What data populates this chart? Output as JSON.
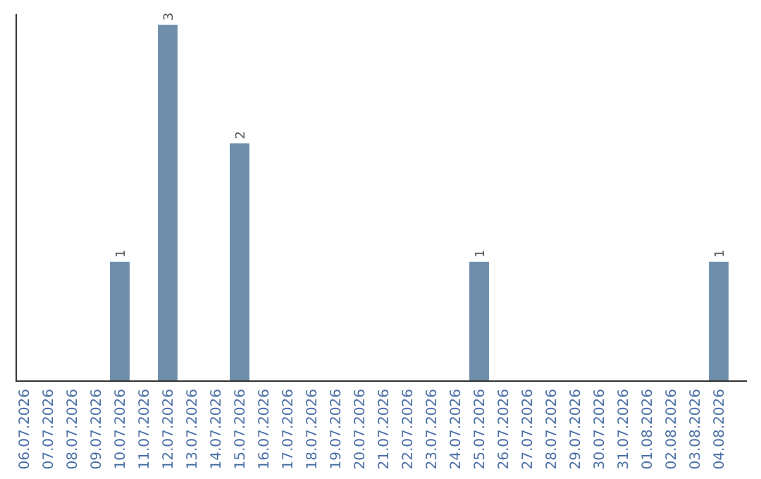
{
  "chart_data": {
    "type": "bar",
    "categories": [
      "06.07.2026",
      "07.07.2026",
      "08.07.2026",
      "09.07.2026",
      "10.07.2026",
      "11.07.2026",
      "12.07.2026",
      "13.07.2026",
      "14.07.2026",
      "15.07.2026",
      "16.07.2026",
      "17.07.2026",
      "18.07.2026",
      "19.07.2026",
      "20.07.2026",
      "21.07.2026",
      "22.07.2026",
      "23.07.2026",
      "24.07.2026",
      "25.07.2026",
      "26.07.2026",
      "27.07.2026",
      "28.07.2026",
      "29.07.2026",
      "30.07.2026",
      "31.07.2026",
      "01.08.2026",
      "02.08.2026",
      "03.08.2026",
      "04.08.2026"
    ],
    "values": [
      0,
      0,
      0,
      0,
      1,
      0,
      3,
      0,
      0,
      2,
      0,
      0,
      0,
      0,
      0,
      0,
      0,
      0,
      0,
      1,
      0,
      0,
      0,
      0,
      0,
      0,
      0,
      0,
      0,
      1
    ],
    "value_labels": [
      null,
      null,
      null,
      null,
      "1",
      null,
      "3",
      null,
      null,
      "2",
      null,
      null,
      null,
      null,
      null,
      null,
      null,
      null,
      null,
      "1",
      null,
      null,
      null,
      null,
      null,
      null,
      null,
      null,
      null,
      "1"
    ],
    "color": "#6e8eac",
    "tick_labels": "x",
    "grid": false
  }
}
